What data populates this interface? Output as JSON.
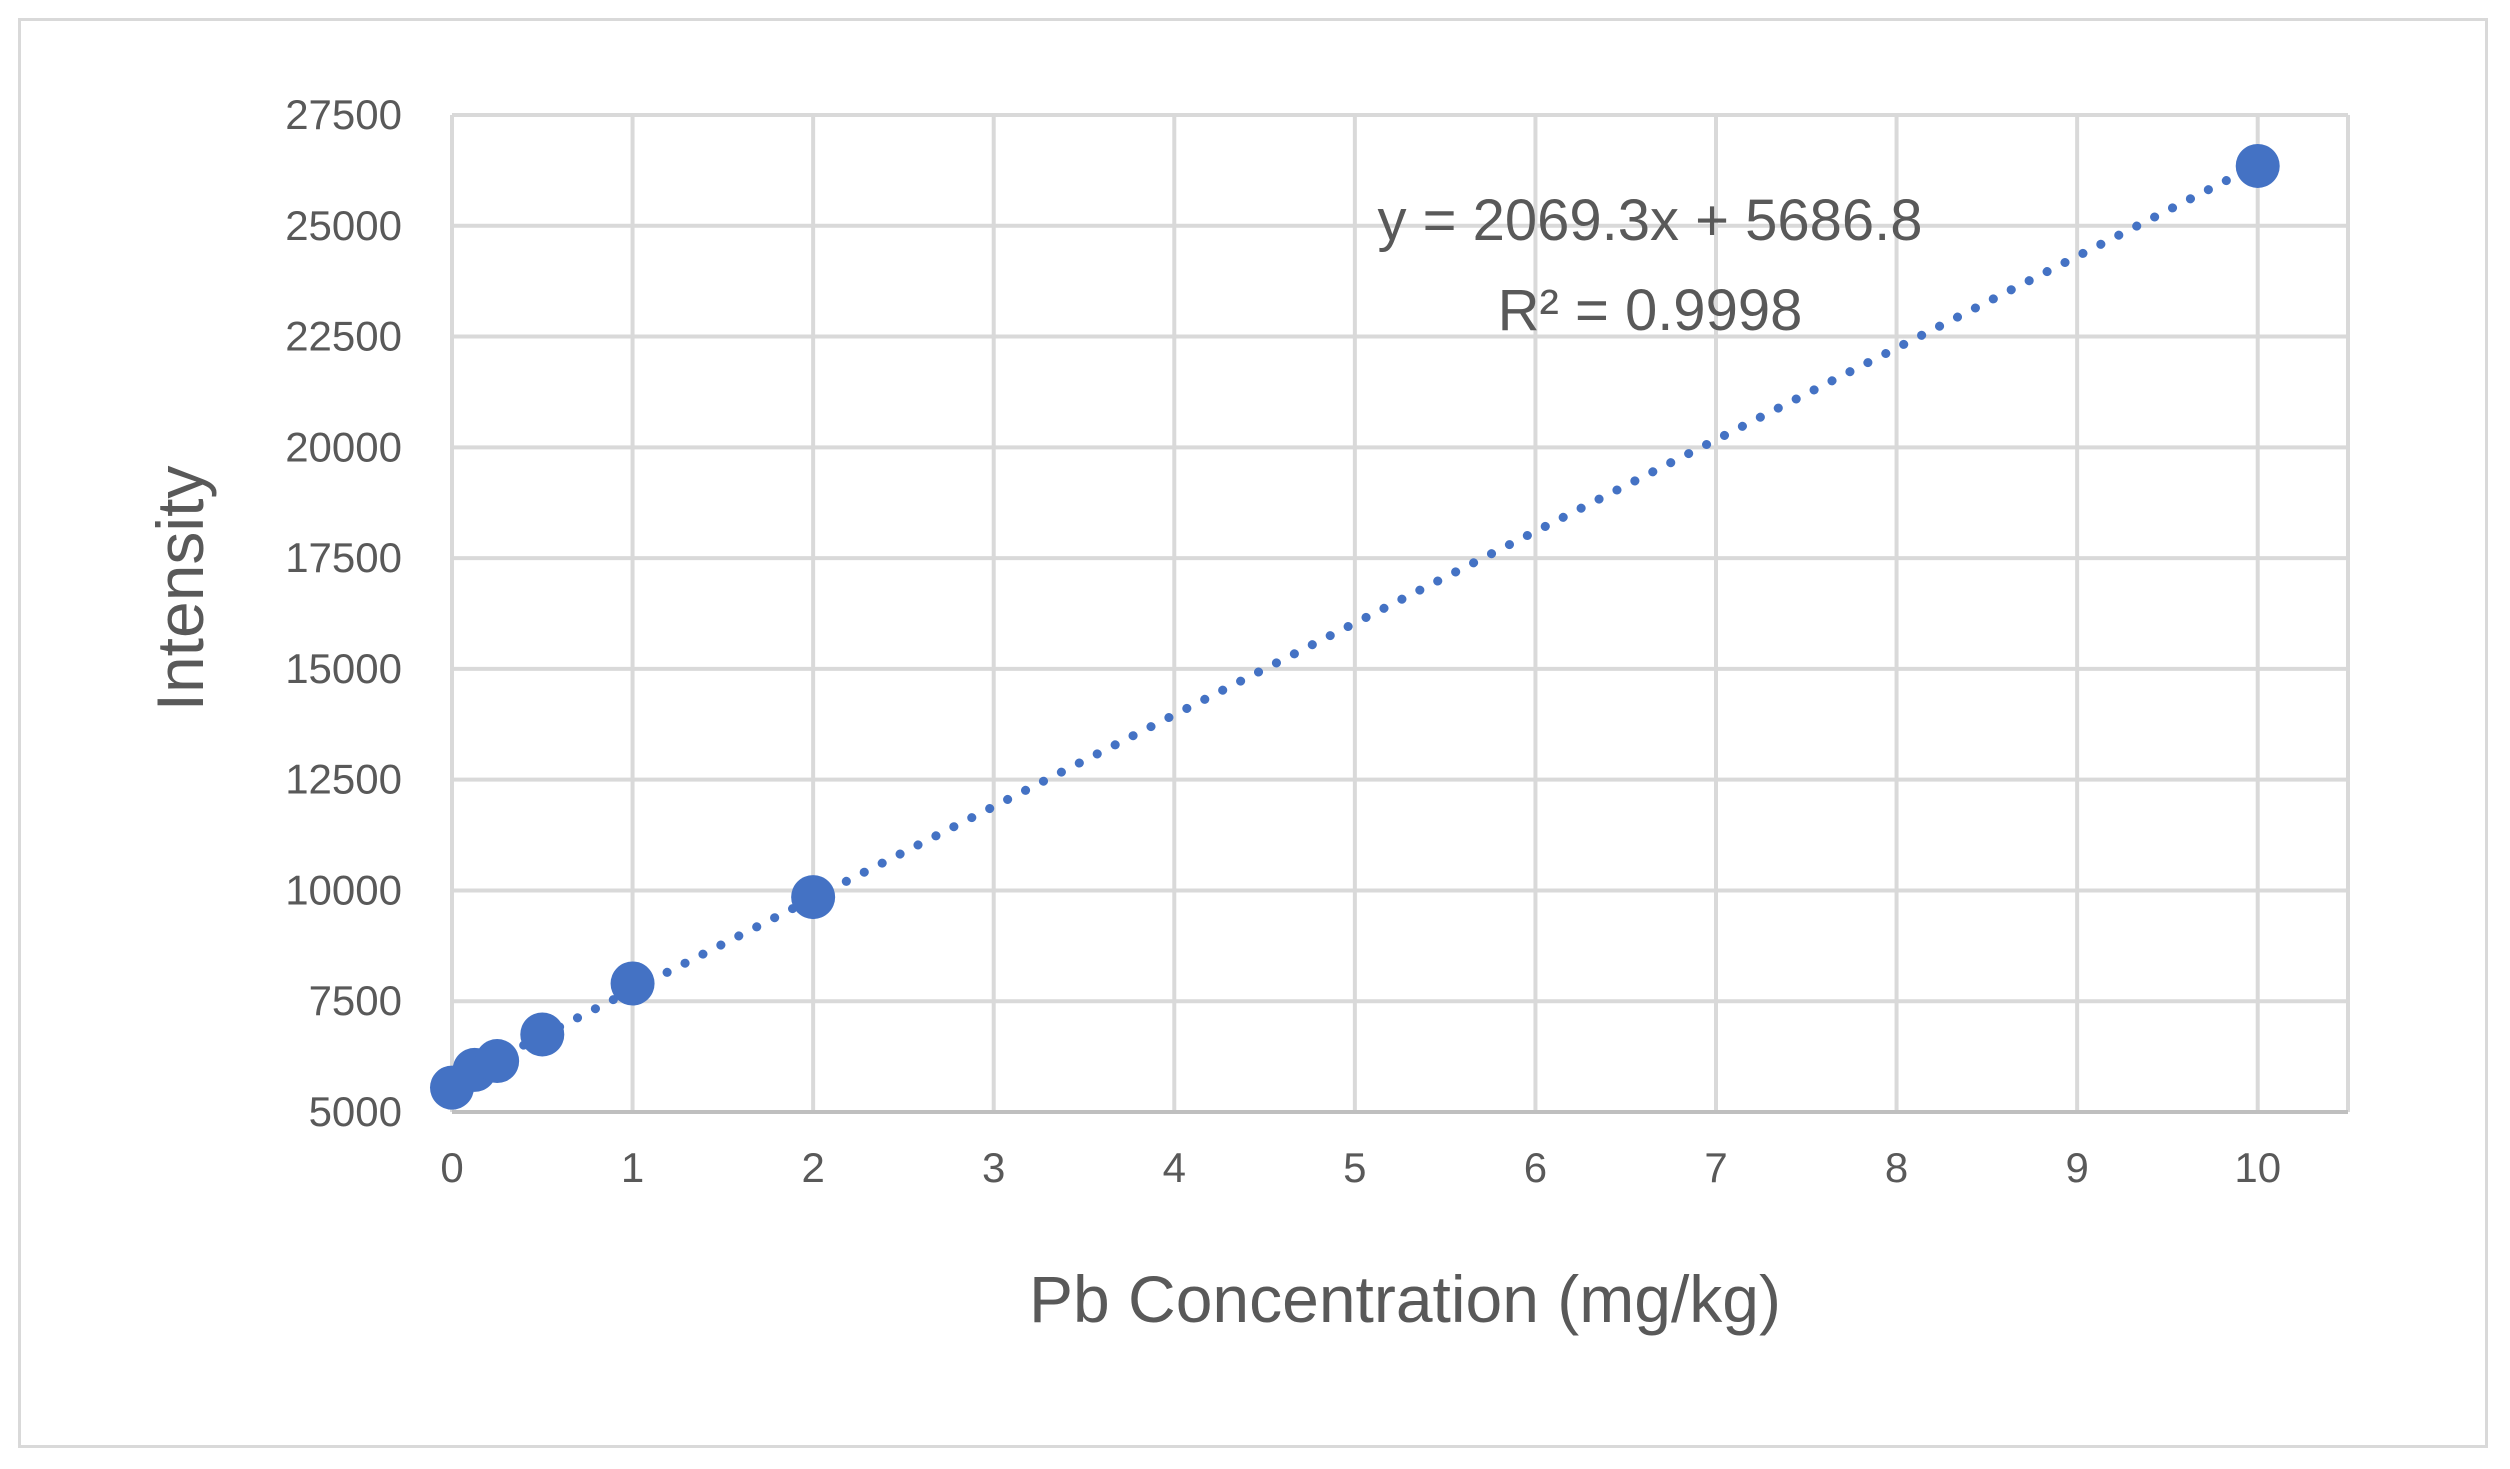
{
  "chart_data": {
    "type": "scatter",
    "title": "",
    "xlabel": "Pb Concentration (mg/kg)",
    "ylabel": "Intensity",
    "xlim": [
      0,
      10.5
    ],
    "ylim": [
      5000,
      27500
    ],
    "x_ticks": [
      "0",
      "1",
      "2",
      "3",
      "4",
      "5",
      "6",
      "7",
      "8",
      "9",
      "10"
    ],
    "y_ticks": [
      "5000",
      "7500",
      "10000",
      "12500",
      "15000",
      "17500",
      "20000",
      "22500",
      "25000",
      "27500"
    ],
    "grid": true,
    "legend": "none",
    "series": [
      {
        "x": [
          0,
          0.125,
          0.25,
          0.5,
          1,
          2,
          10
        ],
        "y": [
          5550,
          5950,
          6150,
          6750,
          7900,
          9850,
          26350
        ],
        "color": "#4472c4"
      }
    ],
    "trendline": {
      "style": "dotted",
      "color": "#4472c4",
      "slope": 2069.3,
      "intercept": 5686.8,
      "equation": "y = 2069.3x + 5686.8",
      "r_squared": "R² = 0.9998"
    }
  }
}
